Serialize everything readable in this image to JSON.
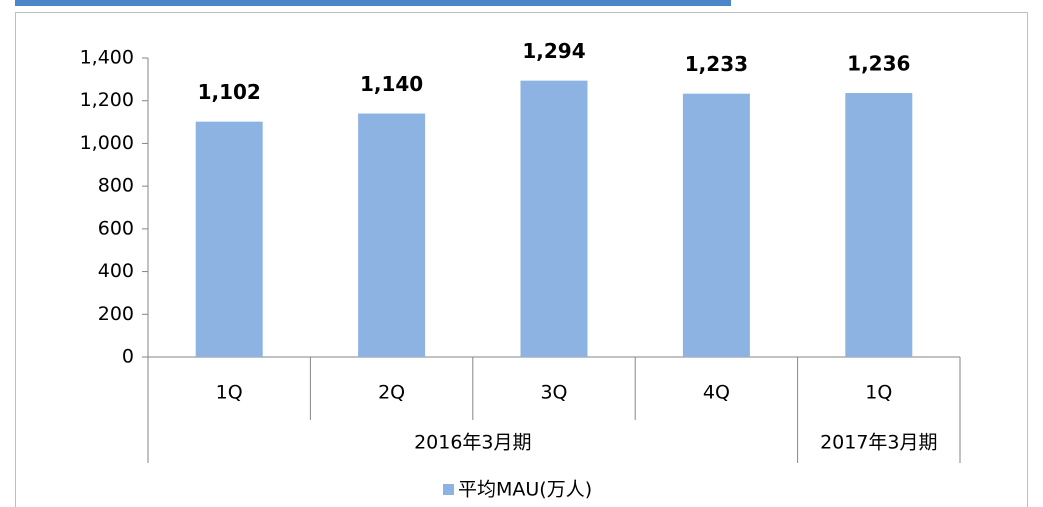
{
  "chart_data": {
    "type": "bar",
    "groups": [
      {
        "name": "2016年3月期",
        "categories": [
          "1Q",
          "2Q",
          "3Q",
          "4Q"
        ]
      },
      {
        "name": "2017年3月期",
        "categories": [
          "1Q"
        ]
      }
    ],
    "series": [
      {
        "name": "平均MAU(万人)",
        "color": "#8db3e2",
        "values": [
          1102,
          1140,
          1294,
          1233,
          1236
        ],
        "value_labels": [
          "1,102",
          "1,140",
          "1,294",
          "1,233",
          "1,236"
        ]
      }
    ],
    "ylim": [
      0,
      1400
    ],
    "yticks": [
      0,
      200,
      400,
      600,
      800,
      {
        "value": 1000,
        "label": "1,000"
      },
      {
        "value": 1200,
        "label": "1,200"
      },
      {
        "value": 1400,
        "label": "1,400"
      }
    ],
    "legend": "bottom"
  }
}
